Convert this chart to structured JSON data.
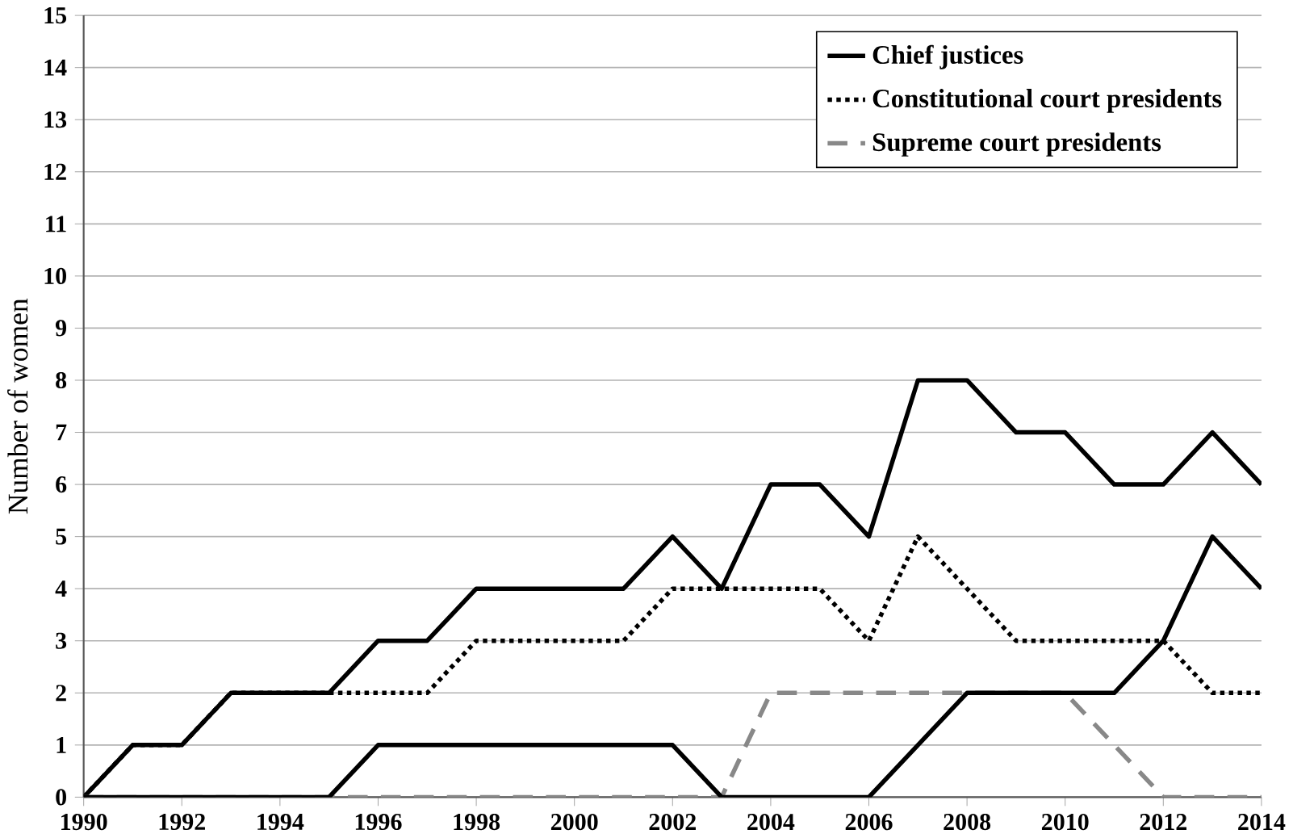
{
  "chart_data": {
    "type": "line",
    "ylabel": "Number of women",
    "x": [
      1990,
      1991,
      1992,
      1993,
      1994,
      1995,
      1996,
      1997,
      1998,
      1999,
      2000,
      2001,
      2002,
      2003,
      2004,
      2005,
      2006,
      2007,
      2008,
      2009,
      2010,
      2011,
      2012,
      2013,
      2014
    ],
    "series": [
      {
        "name": "Chief justices",
        "color": "#000000",
        "line_style": "solid",
        "values": [
          0,
          1,
          1,
          2,
          2,
          2,
          3,
          3,
          4,
          4,
          4,
          4,
          5,
          4,
          6,
          6,
          5,
          8,
          8,
          7,
          7,
          6,
          6,
          7,
          6
        ]
      },
      {
        "name": "Constitutional court presidents",
        "color": "#000000",
        "line_style": "dotted",
        "values": [
          0,
          1,
          1,
          2,
          2,
          2,
          2,
          2,
          3,
          3,
          3,
          3,
          4,
          4,
          4,
          4,
          3,
          5,
          4,
          3,
          3,
          3,
          3,
          2,
          2
        ]
      },
      {
        "name": "Supreme court presidents",
        "color": "#888888",
        "line_style": "dashed",
        "values": [
          0,
          0,
          0,
          0,
          0,
          0,
          0,
          0,
          0,
          0,
          0,
          0,
          0,
          0,
          2,
          2,
          2,
          2,
          2,
          2,
          2,
          1,
          0,
          0,
          0
        ]
      },
      {
        "color": "#000000",
        "line_style": "solid",
        "values": [
          0,
          0,
          0,
          0,
          0,
          0,
          1,
          1,
          1,
          1,
          1,
          1,
          1,
          0,
          0,
          0,
          0,
          1,
          2,
          2,
          2,
          2,
          3,
          5,
          4
        ]
      }
    ],
    "xlim": [
      1990,
      2014
    ],
    "xticks": [
      1990,
      1992,
      1994,
      1996,
      1998,
      2000,
      2002,
      2004,
      2006,
      2008,
      2010,
      2012,
      2014
    ],
    "ylim": [
      0,
      15
    ],
    "yticks": [
      0,
      1,
      2,
      3,
      4,
      5,
      6,
      7,
      8,
      9,
      10,
      11,
      12,
      13,
      14,
      15
    ],
    "grid": "y",
    "legend": "top right",
    "marker": "none"
  }
}
